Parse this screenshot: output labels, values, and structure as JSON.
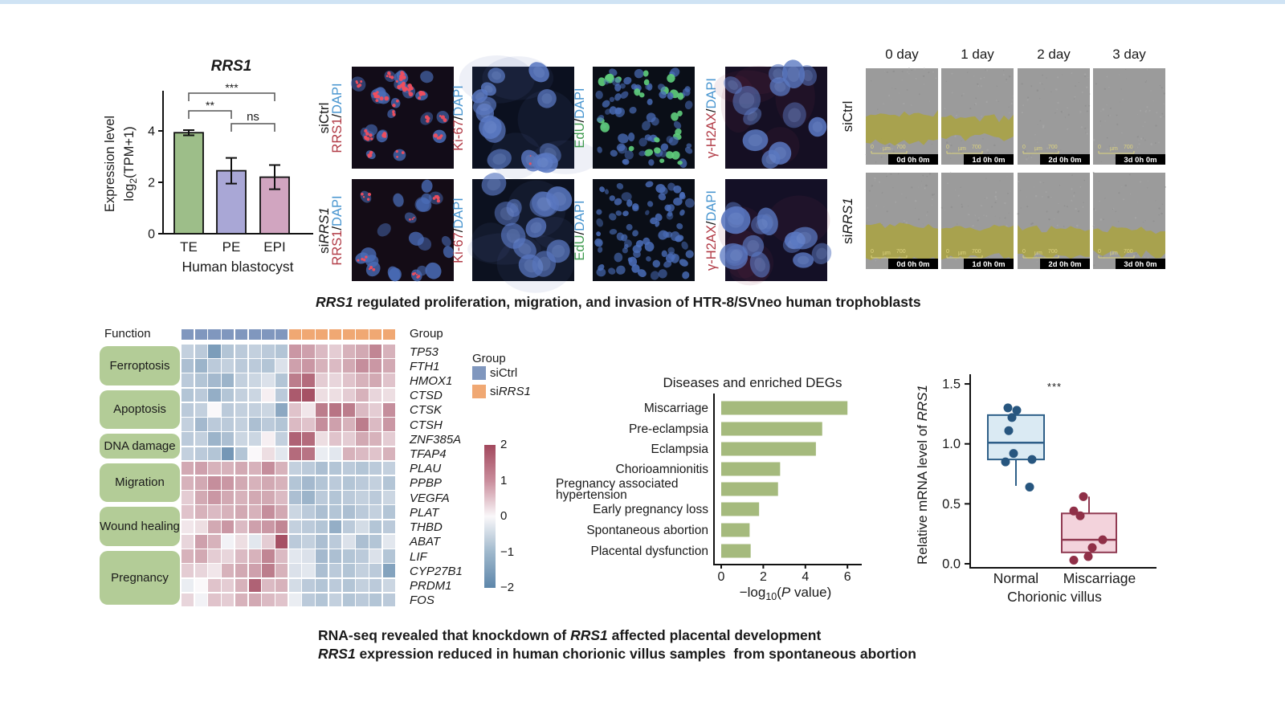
{
  "page": {
    "top_strip_color": "#cfe3f4",
    "background": "#ffffff"
  },
  "captions": {
    "top": [
      {
        "text": "RRS1",
        "italic": true
      },
      {
        "text": " regulated proliferation, migration, and invasion of HTR-8/SVneo human trophoblasts",
        "italic": false
      }
    ],
    "bottom_line1": [
      {
        "text": "RNA-seq revealed that knockdown of ",
        "italic": false
      },
      {
        "text": "RRS1",
        "italic": true
      },
      {
        "text": " affected placental development",
        "italic": false
      }
    ],
    "bottom_line2": [
      {
        "text": "RRS1",
        "italic": true
      },
      {
        "text": " expression reduced in human chorionic villus samples  from spontaneous abortion",
        "italic": false
      }
    ]
  },
  "chart_data": [
    {
      "id": "expression",
      "type": "bar",
      "title": "RRS1",
      "ylabel_line1": "Expression level",
      "ylabel_line2": {
        "pre": "log",
        "sub": "2",
        "post": "(TPM+1)"
      },
      "xlabel": "Human blastocyst",
      "categories": [
        "TE",
        "PE",
        "EPI"
      ],
      "values": [
        3.93,
        2.45,
        2.2
      ],
      "errors": [
        0.1,
        0.5,
        0.47
      ],
      "bar_colors": [
        "#9dbe89",
        "#a9a7d6",
        "#d1a5c0"
      ],
      "ytick_labels": [
        "0",
        "2",
        "4"
      ],
      "yticks": [
        0,
        2,
        4
      ],
      "ylim": [
        0,
        5.5
      ],
      "significance": [
        {
          "label": "***",
          "from": 0,
          "to": 2
        },
        {
          "label": "**",
          "from": 0,
          "to": 1
        },
        {
          "label": "ns",
          "from": 1,
          "to": 2
        }
      ]
    },
    {
      "id": "deg_heatmap",
      "type": "heatmap",
      "function_label": "Function",
      "function_groups": [
        {
          "label": "Ferroptosis",
          "start": 0,
          "end": 2
        },
        {
          "label": "Apoptosis",
          "start": 3,
          "end": 5
        },
        {
          "label": "DNA damage",
          "start": 6,
          "end": 7
        },
        {
          "label": "Migration",
          "start": 8,
          "end": 10
        },
        {
          "label": "Wound healing",
          "start": 11,
          "end": 13
        },
        {
          "label": "Pregnancy",
          "start": 14,
          "end": 17
        }
      ],
      "genes": [
        "TP53",
        "FTH1",
        "HMOX1",
        "CTSD",
        "CTSK",
        "CTSH",
        "ZNF385A",
        "TFAP4",
        "PLAU",
        "PPBP",
        "VEGFA",
        "PLAT",
        "THBD",
        "ABAT",
        "LIF",
        "CYP27B1",
        "PRDM1",
        "FOS"
      ],
      "group_row_label": "Group",
      "columns": {
        "siCtrl": 8,
        "siRRS1": 8
      },
      "group_colors": {
        "siCtrl": "#8097be",
        "siRRS1": "#f0a873"
      },
      "legend": {
        "title": "Group",
        "items": [
          {
            "prefix": "si",
            "gene": "Ctrl",
            "italic": false,
            "color": "#8097be"
          },
          {
            "prefix": "si",
            "gene": "RRS1",
            "italic": true,
            "color": "#f0a873"
          }
        ]
      },
      "colorbar": {
        "ticks": [
          "2",
          "1",
          "0",
          "−1",
          "−2"
        ],
        "range": [
          -2,
          2
        ],
        "max_color": "#a2485d",
        "mid_color": "#faf8fa",
        "min_color": "#5d86aa"
      },
      "values": [
        [
          -0.7,
          -0.8,
          -1.6,
          -0.9,
          -0.8,
          -0.7,
          -0.8,
          -0.9,
          1.1,
          1.0,
          0.7,
          0.5,
          0.8,
          0.9,
          1.3,
          0.8
        ],
        [
          -1.0,
          -1.2,
          -0.8,
          -0.7,
          -0.8,
          -0.8,
          -0.9,
          -0.4,
          1.0,
          1.1,
          0.8,
          0.7,
          0.9,
          1.2,
          1.1,
          0.9
        ],
        [
          -0.8,
          -0.9,
          -1.1,
          -1.2,
          -0.7,
          -0.6,
          -0.4,
          -0.9,
          1.4,
          1.6,
          0.5,
          0.4,
          0.6,
          0.8,
          0.9,
          0.6
        ],
        [
          -0.9,
          -0.8,
          -1.3,
          -0.9,
          -0.7,
          -0.6,
          0.1,
          -0.8,
          1.8,
          1.9,
          0.3,
          0.3,
          0.5,
          0.8,
          0.4,
          0.3
        ],
        [
          -0.8,
          -0.7,
          0.0,
          -0.8,
          -0.7,
          -0.7,
          -0.6,
          -1.4,
          0.6,
          0.2,
          1.4,
          1.5,
          1.4,
          0.7,
          0.5,
          1.2
        ],
        [
          -0.7,
          -1.1,
          -0.8,
          -0.8,
          -0.7,
          -1.0,
          -0.8,
          -0.9,
          0.7,
          0.6,
          1.2,
          1.0,
          0.8,
          1.4,
          0.7,
          1.1
        ],
        [
          -0.8,
          -0.7,
          -1.2,
          -1.0,
          -0.6,
          -0.6,
          0.1,
          -0.7,
          1.7,
          1.6,
          0.3,
          0.6,
          0.5,
          0.9,
          0.8,
          0.5
        ],
        [
          -0.7,
          -0.8,
          -0.9,
          -1.7,
          -0.9,
          0.0,
          0.3,
          -0.3,
          1.6,
          1.5,
          -0.2,
          -0.3,
          0.8,
          0.7,
          0.6,
          0.8
        ],
        [
          0.9,
          1.0,
          0.8,
          0.8,
          0.9,
          0.8,
          1.2,
          0.8,
          -0.7,
          -0.8,
          -1.0,
          -0.9,
          -0.8,
          -0.9,
          -0.8,
          -0.7
        ],
        [
          0.8,
          0.9,
          1.2,
          1.1,
          0.9,
          0.8,
          0.9,
          0.8,
          -0.9,
          -1.1,
          -0.9,
          -0.8,
          -0.9,
          -0.8,
          -0.7,
          -0.9
        ],
        [
          0.5,
          0.9,
          1.1,
          0.9,
          0.8,
          0.9,
          0.9,
          0.7,
          -1.0,
          -1.2,
          -0.8,
          -0.9,
          -0.8,
          -0.7,
          -0.8,
          -0.6
        ],
        [
          0.6,
          0.8,
          0.7,
          0.8,
          0.9,
          0.8,
          1.2,
          0.9,
          -0.6,
          -0.8,
          -1.0,
          -0.9,
          -1.0,
          -0.8,
          -0.7,
          -0.9
        ],
        [
          0.2,
          0.3,
          0.9,
          1.1,
          0.7,
          1.0,
          1.1,
          1.3,
          -0.7,
          -0.8,
          -0.9,
          -1.3,
          -0.8,
          -0.5,
          -0.9,
          -0.8
        ],
        [
          0.4,
          1.0,
          0.8,
          -0.1,
          0.3,
          -0.3,
          0.5,
          1.9,
          -0.8,
          -0.7,
          -1.0,
          -0.8,
          -0.4,
          -1.0,
          -0.9,
          -0.3
        ],
        [
          0.8,
          0.9,
          0.5,
          0.4,
          0.7,
          0.8,
          1.3,
          0.7,
          -0.3,
          -0.4,
          -1.1,
          -1.0,
          -0.9,
          -0.8,
          -0.4,
          -0.9
        ],
        [
          0.5,
          0.4,
          0.2,
          0.8,
          0.9,
          1.0,
          1.4,
          0.8,
          -0.4,
          -0.3,
          -1.0,
          -0.8,
          -0.9,
          -0.7,
          -0.8,
          -1.5
        ],
        [
          -0.2,
          0.0,
          0.6,
          0.5,
          0.8,
          1.7,
          0.7,
          0.8,
          -0.5,
          -0.8,
          -0.9,
          -0.8,
          -0.9,
          -0.7,
          -0.8,
          -0.6
        ],
        [
          0.4,
          -0.1,
          0.6,
          0.5,
          0.8,
          0.9,
          0.7,
          0.6,
          -0.2,
          -0.8,
          -0.9,
          -0.7,
          -0.9,
          -0.8,
          -0.9,
          -0.8
        ]
      ]
    },
    {
      "id": "enrichment",
      "type": "bar",
      "orientation": "horizontal",
      "title": "Diseases and enriched DEGs",
      "categories": [
        "Miscarriage",
        "Pre-eclampsia",
        "Eclampsia",
        "Chorioamnionitis",
        "Pregnancy associated hypertension",
        "Early pregnancy loss",
        "Spontaneous abortion",
        "Placental dysfunction"
      ],
      "values": [
        6.0,
        4.8,
        4.5,
        2.8,
        2.7,
        1.8,
        1.35,
        1.4
      ],
      "bar_color": "#a5ba7d",
      "xticks": [
        0,
        2,
        4,
        6
      ],
      "xtick_labels": [
        "0",
        "2",
        "4",
        "6"
      ],
      "xlim": [
        0,
        6.3
      ],
      "xlabel": {
        "pre": "−log",
        "sub": "10",
        "mid": "(",
        "italic": "P",
        "post": " value)"
      }
    },
    {
      "id": "mrna_boxplot",
      "type": "box",
      "ylabel": {
        "pre": "Relative mRNA level of ",
        "italic": "RRS1"
      },
      "xlabel": "Chorionic villus",
      "ytick_labels": [
        "1.5",
        "1.0",
        "0.5",
        "0.0"
      ],
      "yticks": [
        1.5,
        1.0,
        0.5,
        0.0
      ],
      "ylim": [
        0,
        1.55
      ],
      "significance": "***",
      "groups": [
        {
          "label": "Normal",
          "stroke": "#2e5f88",
          "fill": "#daeaf3",
          "dot": "#27567f",
          "median": 1.01,
          "q1": 0.87,
          "q3": 1.24,
          "whisker_low": 0.65,
          "whisker_high": null,
          "points": [
            1.3,
            1.28,
            1.22,
            1.11,
            0.92,
            0.87,
            0.85,
            0.64
          ],
          "point_x": [
            -10,
            1,
            -5,
            -9,
            -3,
            20,
            -13,
            17
          ]
        },
        {
          "label": "Miscarriage",
          "stroke": "#903a52",
          "fill": "#f3d3dc",
          "dot": "#8f2f47",
          "median": 0.2,
          "q1": 0.095,
          "q3": 0.42,
          "whisker_low": null,
          "whisker_high": 0.56,
          "points": [
            0.56,
            0.44,
            0.4,
            0.2,
            0.135,
            0.06,
            0.03
          ],
          "point_x": [
            -7,
            -19,
            -11,
            17,
            4,
            -1,
            -19
          ]
        }
      ]
    }
  ],
  "microscopy": {
    "rows": [
      {
        "prefix": "si",
        "gene": "Ctrl",
        "italic": false
      },
      {
        "prefix": "si",
        "gene": "RRS1",
        "italic": true
      }
    ],
    "separator": "/",
    "costain": "DAPI",
    "costain_color": "#4694cf",
    "columns": [
      {
        "marker": "RRS1",
        "color": "#b13a45"
      },
      {
        "marker": "Ki-67",
        "color": "#b13a45"
      },
      {
        "marker": "EdU",
        "color": "#3f9b4f"
      },
      {
        "marker": "γ-H2AX",
        "color": "#b13a45"
      }
    ],
    "cells": [
      [
        {
          "nuclei": 26,
          "rmin": 5,
          "rmax": 9,
          "dots": 0.9,
          "dot_r": 2.2,
          "green": 0,
          "haze": null,
          "bg": "#120c18",
          "big": false
        },
        {
          "nuclei": 14,
          "rmin": 10,
          "rmax": 16,
          "dots": 0.22,
          "dot_r": 1.3,
          "green": 0,
          "haze": "#5a6bb5",
          "bg": "#0b101f",
          "big": true
        },
        {
          "nuclei": 88,
          "rmin": 3,
          "rmax": 6,
          "dots": 0,
          "dot_r": 0,
          "green": 0.24,
          "haze": null,
          "bg": "#0a0e17",
          "big": false
        },
        {
          "nuclei": 12,
          "rmin": 12,
          "rmax": 18,
          "dots": 0,
          "dot_r": 0,
          "green": 0,
          "haze": "#8a3050",
          "bg": "#150f23",
          "big": true
        }
      ],
      [
        {
          "nuclei": 22,
          "rmin": 6,
          "rmax": 10,
          "dots": 0.38,
          "dot_r": 1.7,
          "green": 0,
          "haze": null,
          "bg": "#140c16",
          "big": false
        },
        {
          "nuclei": 12,
          "rmin": 11,
          "rmax": 17,
          "dots": 0,
          "dot_r": 0,
          "green": 0,
          "haze": "#5a6bb5",
          "bg": "#0c111f",
          "big": true
        },
        {
          "nuclei": 82,
          "rmin": 3,
          "rmax": 6,
          "dots": 0,
          "dot_r": 0,
          "green": 0,
          "haze": null,
          "bg": "#0a0e17",
          "big": false
        },
        {
          "nuclei": 13,
          "rmin": 12,
          "rmax": 18,
          "dots": 0,
          "dot_r": 0,
          "green": 0,
          "haze": "#8a3050",
          "bg": "#141026",
          "big": true
        }
      ]
    ]
  },
  "wound": {
    "day_headers": [
      "0 day",
      "1 day",
      "2 day",
      "3 day"
    ],
    "rows": [
      {
        "prefix": "si",
        "gene": "Ctrl",
        "italic": false,
        "bands": [
          0.3,
          0.2,
          0,
          0
        ],
        "center": 0.62
      },
      {
        "prefix": "si",
        "gene": "RRS1",
        "italic": true,
        "bands": [
          0.34,
          0.3,
          0.28,
          0.25
        ],
        "center": 0.72
      }
    ],
    "timestamps": [
      "0d 0h 0m",
      "1d 0h 0m",
      "2d 0h 0m",
      "3d 0h 0m"
    ],
    "scalebar": {
      "left": "0",
      "unit": "µm",
      "right": "700"
    },
    "colors": {
      "bg": "#9b9b9b",
      "band": "#a8a24b",
      "scalebar": "#ded47f",
      "timestamp_bg": "#000000",
      "timestamp_text": "#ffffff"
    }
  }
}
